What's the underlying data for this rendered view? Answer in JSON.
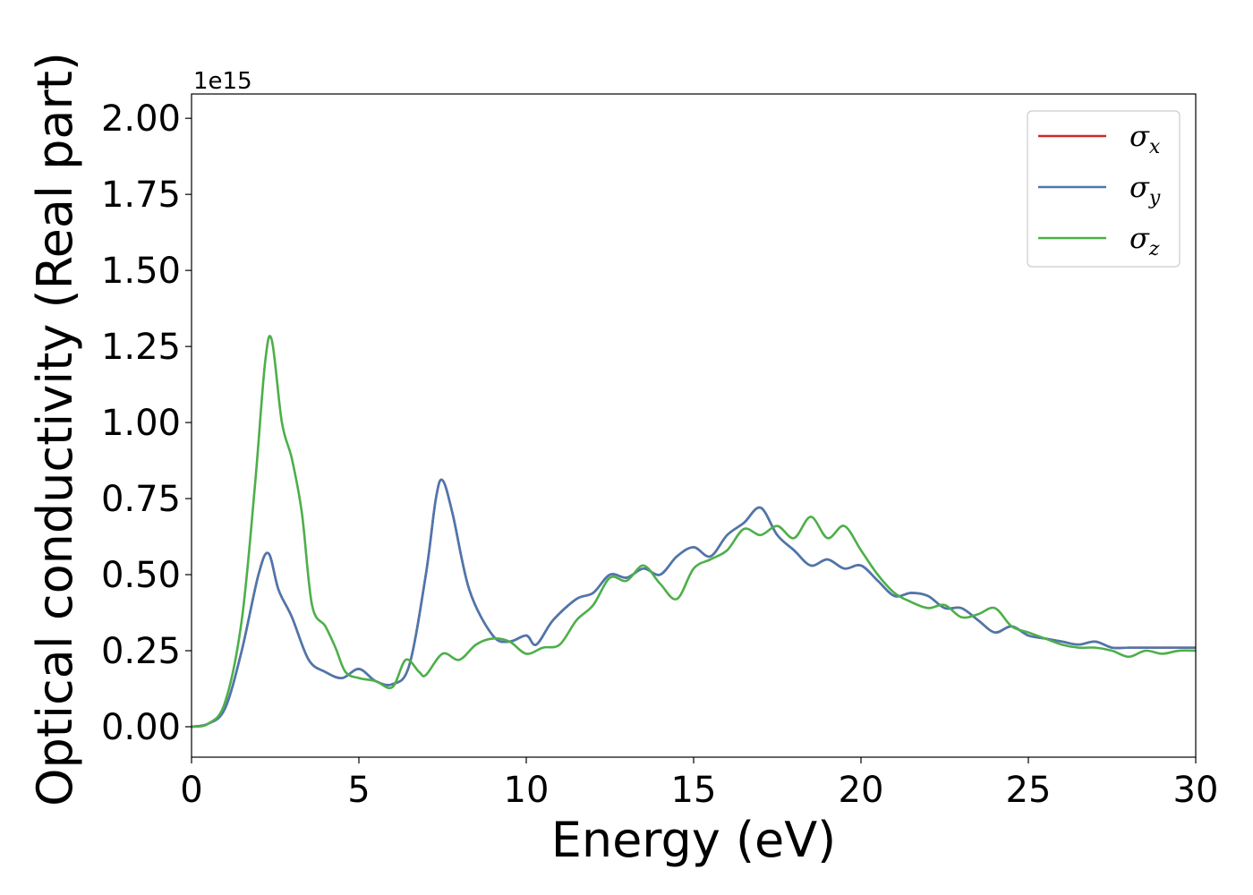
{
  "chart_data": {
    "type": "line",
    "title": "",
    "xlabel": "Energy (eV)",
    "ylabel": "Optical conductivity (Real part)",
    "y_offset_label": "1e15",
    "xlim": [
      0,
      30
    ],
    "ylim": [
      -0.1,
      2.08
    ],
    "x_ticks": [
      0,
      5,
      10,
      15,
      20,
      25,
      30
    ],
    "x_tick_labels": [
      "0",
      "5",
      "10",
      "15",
      "20",
      "25",
      "30"
    ],
    "y_ticks": [
      0,
      0.25,
      0.5,
      0.75,
      1.0,
      1.25,
      1.5,
      1.75,
      2.0
    ],
    "y_tick_labels": [
      "0.00",
      "0.25",
      "0.50",
      "0.75",
      "1.00",
      "1.25",
      "1.50",
      "1.75",
      "2.00"
    ],
    "grid": false,
    "legend_position": "top-right",
    "series": [
      {
        "name": "σx",
        "symbol": "σ",
        "subscript": "x",
        "color": "#d62728",
        "points": [
          [
            0,
            0
          ],
          [
            0.5,
            0.01
          ],
          [
            1,
            0.06
          ],
          [
            1.5,
            0.25
          ],
          [
            2,
            0.5
          ],
          [
            2.3,
            0.57
          ],
          [
            2.6,
            0.45
          ],
          [
            3,
            0.36
          ],
          [
            3.5,
            0.22
          ],
          [
            4,
            0.18
          ],
          [
            4.5,
            0.16
          ],
          [
            5,
            0.19
          ],
          [
            5.5,
            0.15
          ],
          [
            6,
            0.14
          ],
          [
            6.5,
            0.2
          ],
          [
            7,
            0.5
          ],
          [
            7.3,
            0.75
          ],
          [
            7.5,
            0.81
          ],
          [
            7.8,
            0.7
          ],
          [
            8.3,
            0.45
          ],
          [
            9,
            0.3
          ],
          [
            9.5,
            0.28
          ],
          [
            10,
            0.3
          ],
          [
            10.3,
            0.27
          ],
          [
            10.8,
            0.35
          ],
          [
            11.5,
            0.42
          ],
          [
            12,
            0.44
          ],
          [
            12.5,
            0.5
          ],
          [
            13,
            0.49
          ],
          [
            13.5,
            0.52
          ],
          [
            14,
            0.5
          ],
          [
            14.5,
            0.56
          ],
          [
            15,
            0.59
          ],
          [
            15.5,
            0.56
          ],
          [
            16,
            0.63
          ],
          [
            16.5,
            0.67
          ],
          [
            17,
            0.72
          ],
          [
            17.5,
            0.63
          ],
          [
            18,
            0.58
          ],
          [
            18.5,
            0.53
          ],
          [
            19,
            0.55
          ],
          [
            19.5,
            0.52
          ],
          [
            20,
            0.53
          ],
          [
            20.5,
            0.48
          ],
          [
            21,
            0.43
          ],
          [
            21.5,
            0.44
          ],
          [
            22,
            0.43
          ],
          [
            22.5,
            0.39
          ],
          [
            23,
            0.39
          ],
          [
            23.5,
            0.35
          ],
          [
            24,
            0.31
          ],
          [
            24.5,
            0.33
          ],
          [
            25,
            0.3
          ],
          [
            25.5,
            0.29
          ],
          [
            26,
            0.28
          ],
          [
            26.5,
            0.27
          ],
          [
            27,
            0.28
          ],
          [
            27.5,
            0.26
          ],
          [
            28,
            0.26
          ],
          [
            28.5,
            0.26
          ],
          [
            29,
            0.26
          ],
          [
            29.5,
            0.26
          ],
          [
            30,
            0.26
          ]
        ]
      },
      {
        "name": "σy",
        "symbol": "σ",
        "subscript": "y",
        "color": "#4a78ae",
        "points": [
          [
            0,
            0
          ],
          [
            0.5,
            0.01
          ],
          [
            1,
            0.06
          ],
          [
            1.5,
            0.25
          ],
          [
            2,
            0.5
          ],
          [
            2.3,
            0.57
          ],
          [
            2.6,
            0.45
          ],
          [
            3,
            0.36
          ],
          [
            3.5,
            0.22
          ],
          [
            4,
            0.18
          ],
          [
            4.5,
            0.16
          ],
          [
            5,
            0.19
          ],
          [
            5.5,
            0.15
          ],
          [
            6,
            0.14
          ],
          [
            6.5,
            0.2
          ],
          [
            7,
            0.5
          ],
          [
            7.3,
            0.75
          ],
          [
            7.5,
            0.81
          ],
          [
            7.8,
            0.7
          ],
          [
            8.3,
            0.45
          ],
          [
            9,
            0.3
          ],
          [
            9.5,
            0.28
          ],
          [
            10,
            0.3
          ],
          [
            10.3,
            0.27
          ],
          [
            10.8,
            0.35
          ],
          [
            11.5,
            0.42
          ],
          [
            12,
            0.44
          ],
          [
            12.5,
            0.5
          ],
          [
            13,
            0.49
          ],
          [
            13.5,
            0.52
          ],
          [
            14,
            0.5
          ],
          [
            14.5,
            0.56
          ],
          [
            15,
            0.59
          ],
          [
            15.5,
            0.56
          ],
          [
            16,
            0.63
          ],
          [
            16.5,
            0.67
          ],
          [
            17,
            0.72
          ],
          [
            17.5,
            0.63
          ],
          [
            18,
            0.58
          ],
          [
            18.5,
            0.53
          ],
          [
            19,
            0.55
          ],
          [
            19.5,
            0.52
          ],
          [
            20,
            0.53
          ],
          [
            20.5,
            0.48
          ],
          [
            21,
            0.43
          ],
          [
            21.5,
            0.44
          ],
          [
            22,
            0.43
          ],
          [
            22.5,
            0.39
          ],
          [
            23,
            0.39
          ],
          [
            23.5,
            0.35
          ],
          [
            24,
            0.31
          ],
          [
            24.5,
            0.33
          ],
          [
            25,
            0.3
          ],
          [
            25.5,
            0.29
          ],
          [
            26,
            0.28
          ],
          [
            26.5,
            0.27
          ],
          [
            27,
            0.28
          ],
          [
            27.5,
            0.26
          ],
          [
            28,
            0.26
          ],
          [
            28.5,
            0.26
          ],
          [
            29,
            0.26
          ],
          [
            29.5,
            0.26
          ],
          [
            30,
            0.26
          ]
        ]
      },
      {
        "name": "σz",
        "symbol": "σ",
        "subscript": "z",
        "color": "#4daf4a",
        "points": [
          [
            0,
            0
          ],
          [
            0.5,
            0.01
          ],
          [
            1,
            0.08
          ],
          [
            1.5,
            0.35
          ],
          [
            1.9,
            0.8
          ],
          [
            2.2,
            1.2
          ],
          [
            2.4,
            1.27
          ],
          [
            2.7,
            1.0
          ],
          [
            3,
            0.88
          ],
          [
            3.3,
            0.7
          ],
          [
            3.6,
            0.4
          ],
          [
            4,
            0.33
          ],
          [
            4.3,
            0.26
          ],
          [
            4.6,
            0.18
          ],
          [
            5,
            0.16
          ],
          [
            5.5,
            0.15
          ],
          [
            6,
            0.13
          ],
          [
            6.4,
            0.22
          ],
          [
            6.8,
            0.18
          ],
          [
            7,
            0.17
          ],
          [
            7.5,
            0.24
          ],
          [
            8,
            0.22
          ],
          [
            8.5,
            0.27
          ],
          [
            9,
            0.29
          ],
          [
            9.5,
            0.28
          ],
          [
            10,
            0.24
          ],
          [
            10.5,
            0.26
          ],
          [
            11,
            0.27
          ],
          [
            11.5,
            0.35
          ],
          [
            12,
            0.4
          ],
          [
            12.5,
            0.49
          ],
          [
            13,
            0.48
          ],
          [
            13.5,
            0.53
          ],
          [
            14,
            0.47
          ],
          [
            14.5,
            0.42
          ],
          [
            15,
            0.52
          ],
          [
            15.5,
            0.55
          ],
          [
            16,
            0.58
          ],
          [
            16.5,
            0.65
          ],
          [
            17,
            0.63
          ],
          [
            17.5,
            0.66
          ],
          [
            18,
            0.62
          ],
          [
            18.5,
            0.69
          ],
          [
            19,
            0.62
          ],
          [
            19.5,
            0.66
          ],
          [
            20,
            0.58
          ],
          [
            20.5,
            0.5
          ],
          [
            21,
            0.44
          ],
          [
            21.5,
            0.41
          ],
          [
            22,
            0.39
          ],
          [
            22.5,
            0.4
          ],
          [
            23,
            0.36
          ],
          [
            23.5,
            0.37
          ],
          [
            24,
            0.39
          ],
          [
            24.5,
            0.33
          ],
          [
            25,
            0.31
          ],
          [
            25.5,
            0.29
          ],
          [
            26,
            0.27
          ],
          [
            26.5,
            0.26
          ],
          [
            27,
            0.26
          ],
          [
            27.5,
            0.25
          ],
          [
            28,
            0.23
          ],
          [
            28.5,
            0.25
          ],
          [
            29,
            0.24
          ],
          [
            29.5,
            0.25
          ],
          [
            30,
            0.25
          ]
        ]
      }
    ]
  }
}
